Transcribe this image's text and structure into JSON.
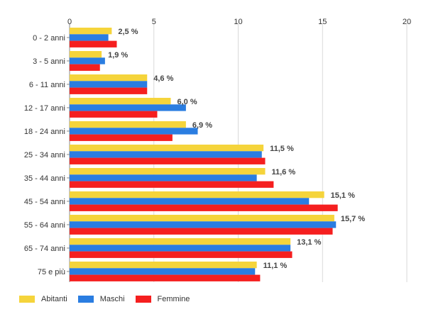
{
  "chart_data": {
    "type": "bar",
    "orientation": "horizontal",
    "categories": [
      "0 - 2 anni",
      "3 - 5 anni",
      "6 - 11 anni",
      "12 - 17 anni",
      "18 - 24 anni",
      "25 - 34 anni",
      "35 - 44 anni",
      "45 - 54 anni",
      "55 - 64 anni",
      "65 - 74 anni",
      "75 e più"
    ],
    "series": [
      {
        "name": "Abitanti",
        "color": "#f5d43b",
        "values": [
          2.5,
          1.9,
          4.6,
          6.0,
          6.9,
          11.5,
          11.6,
          15.1,
          15.7,
          13.1,
          11.1
        ]
      },
      {
        "name": "Maschi",
        "color": "#2a7de1",
        "values": [
          2.3,
          2.1,
          4.6,
          6.9,
          7.6,
          11.4,
          11.1,
          14.2,
          15.8,
          13.1,
          11.0
        ]
      },
      {
        "name": "Femmine",
        "color": "#f51f1f",
        "values": [
          2.8,
          1.8,
          4.6,
          5.2,
          6.1,
          11.6,
          12.1,
          15.9,
          15.6,
          13.2,
          11.3
        ]
      }
    ],
    "data_labels": [
      "2,5 %",
      "1,9 %",
      "4,6 %",
      "6,0 %",
      "6,9 %",
      "11,5 %",
      "11,6 %",
      "15,1 %",
      "15,7 %",
      "13,1 %",
      "11,1 %"
    ],
    "xlim": [
      0,
      20
    ],
    "xticks": [
      0,
      5,
      10,
      15,
      20
    ],
    "xtick_labels": [
      "0",
      "5",
      "10",
      "15",
      "20"
    ],
    "x_axis_position": "top",
    "grid": true,
    "legend_position": "bottom-left"
  }
}
